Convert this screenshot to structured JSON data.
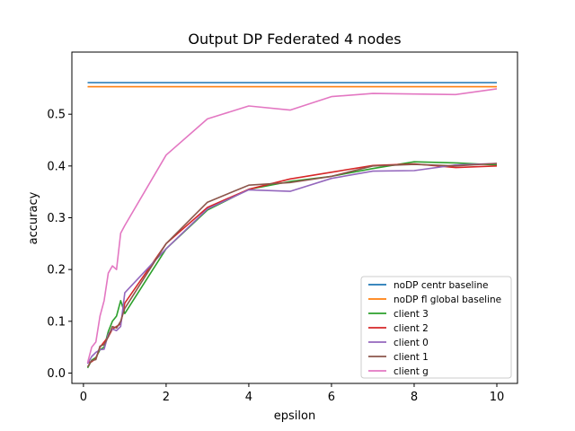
{
  "chart_data": {
    "type": "line",
    "title": "Output DP Federated 4 nodes",
    "xlabel": "epsilon",
    "ylabel": "accuracy",
    "xlim": [
      -0.28,
      10.5
    ],
    "ylim": [
      -0.02,
      0.62
    ],
    "xticks": [
      0,
      2,
      4,
      6,
      8,
      10
    ],
    "yticks": [
      0.0,
      0.1,
      0.2,
      0.3,
      0.4,
      0.5
    ],
    "ytick_labels": [
      "0.0",
      "0.1",
      "0.2",
      "0.3",
      "0.4",
      "0.5"
    ],
    "grid": false,
    "legend_position": "lower-right",
    "series": [
      {
        "name": "noDP centr baseline",
        "color": "#1f77b4",
        "x": [
          0.1,
          10
        ],
        "y": [
          0.561,
          0.561
        ]
      },
      {
        "name": "noDP fl global baseline",
        "color": "#ff7f0e",
        "x": [
          0.1,
          10
        ],
        "y": [
          0.553,
          0.553
        ]
      },
      {
        "name": "client 3",
        "color": "#2ca02c",
        "x": [
          0.1,
          0.2,
          0.3,
          0.4,
          0.5,
          0.6,
          0.7,
          0.8,
          0.9,
          1,
          2,
          3,
          4,
          5,
          6,
          7,
          8,
          9,
          10
        ],
        "y": [
          0.01,
          0.025,
          0.03,
          0.045,
          0.05,
          0.08,
          0.1,
          0.11,
          0.14,
          0.115,
          0.24,
          0.315,
          0.355,
          0.37,
          0.38,
          0.395,
          0.408,
          0.406,
          0.402
        ]
      },
      {
        "name": "client 2",
        "color": "#d62728",
        "x": [
          0.1,
          0.2,
          0.3,
          0.4,
          0.5,
          0.6,
          0.7,
          0.8,
          0.9,
          1,
          2,
          3,
          4,
          5,
          6,
          7,
          8,
          9,
          10
        ],
        "y": [
          0.02,
          0.022,
          0.028,
          0.05,
          0.06,
          0.07,
          0.085,
          0.09,
          0.095,
          0.135,
          0.25,
          0.32,
          0.355,
          0.375,
          0.388,
          0.401,
          0.404,
          0.397,
          0.4
        ]
      },
      {
        "name": "client 0",
        "color": "#9467bd",
        "x": [
          0.1,
          0.2,
          0.3,
          0.4,
          0.5,
          0.6,
          0.7,
          0.8,
          0.9,
          1,
          2,
          3,
          4,
          5,
          6,
          7,
          8,
          9,
          10
        ],
        "y": [
          0.018,
          0.032,
          0.04,
          0.045,
          0.046,
          0.075,
          0.085,
          0.082,
          0.09,
          0.155,
          0.24,
          0.317,
          0.354,
          0.351,
          0.376,
          0.39,
          0.391,
          0.402,
          0.405
        ]
      },
      {
        "name": "client 1",
        "color": "#8c564b",
        "x": [
          0.1,
          0.2,
          0.3,
          0.4,
          0.5,
          0.6,
          0.7,
          0.8,
          0.9,
          1,
          2,
          3,
          4,
          5,
          6,
          7,
          8,
          9,
          10
        ],
        "y": [
          0.012,
          0.024,
          0.026,
          0.052,
          0.055,
          0.07,
          0.09,
          0.087,
          0.1,
          0.125,
          0.25,
          0.33,
          0.363,
          0.368,
          0.38,
          0.4,
          0.403,
          0.4,
          0.405
        ]
      },
      {
        "name": "client g",
        "color": "#e377c2",
        "x": [
          0.1,
          0.2,
          0.3,
          0.4,
          0.5,
          0.6,
          0.7,
          0.8,
          0.9,
          1,
          2,
          3,
          4,
          5,
          6,
          7,
          8,
          9,
          10
        ],
        "y": [
          0.02,
          0.05,
          0.06,
          0.11,
          0.14,
          0.193,
          0.207,
          0.2,
          0.27,
          0.285,
          0.421,
          0.491,
          0.516,
          0.508,
          0.534,
          0.54,
          0.539,
          0.538,
          0.549
        ]
      }
    ]
  }
}
